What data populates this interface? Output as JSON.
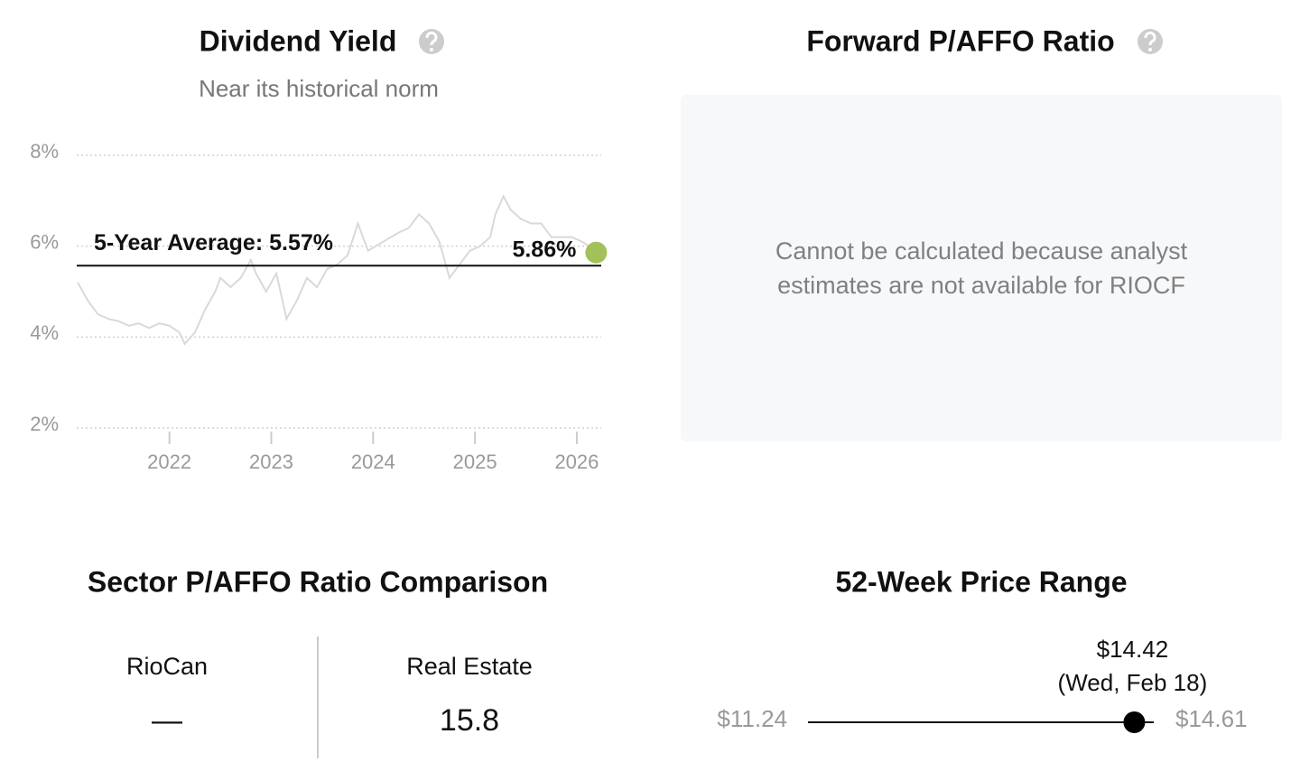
{
  "chart_data": {
    "type": "line",
    "title": "Dividend Yield",
    "subtitle": "Near its historical norm",
    "x": [
      2021.1,
      2021.2,
      2021.3,
      2021.4,
      2021.5,
      2021.6,
      2021.7,
      2021.8,
      2021.9,
      2022.0,
      2022.1,
      2022.15,
      2022.25,
      2022.35,
      2022.45,
      2022.5,
      2022.6,
      2022.7,
      2022.8,
      2022.85,
      2022.95,
      2023.05,
      2023.1,
      2023.15,
      2023.25,
      2023.35,
      2023.45,
      2023.55,
      2023.65,
      2023.75,
      2023.85,
      2023.95,
      2024.1,
      2024.25,
      2024.35,
      2024.45,
      2024.55,
      2024.65,
      2024.7,
      2024.75,
      2024.85,
      2024.95,
      2025.05,
      2025.15,
      2025.2,
      2025.28,
      2025.35,
      2025.45,
      2025.55,
      2025.65,
      2025.75,
      2025.85,
      2025.95,
      2026.05,
      2026.12
    ],
    "values": [
      5.2,
      4.8,
      4.5,
      4.4,
      4.35,
      4.25,
      4.3,
      4.2,
      4.3,
      4.25,
      4.1,
      3.85,
      4.1,
      4.6,
      5.0,
      5.3,
      5.1,
      5.3,
      5.7,
      5.4,
      5.0,
      5.4,
      4.9,
      4.4,
      4.8,
      5.3,
      5.1,
      5.5,
      5.6,
      5.8,
      6.5,
      5.9,
      6.1,
      6.3,
      6.4,
      6.7,
      6.5,
      6.1,
      5.7,
      5.3,
      5.6,
      5.9,
      6.0,
      6.2,
      6.7,
      7.1,
      6.8,
      6.6,
      6.5,
      6.5,
      6.2,
      6.2,
      6.2,
      6.1,
      6.0
    ],
    "color": "#d9d9d9",
    "xlim": [
      2021.09,
      2026.24
    ],
    "xticks": [
      2022,
      2023,
      2024,
      2025,
      2026
    ],
    "ylim": [
      2,
      8
    ],
    "yticks": [
      {
        "value": 2,
        "label": "2%"
      },
      {
        "value": 4,
        "label": "4%"
      },
      {
        "value": 6,
        "label": "6%"
      },
      {
        "value": 8,
        "label": "8%"
      }
    ],
    "grid": true,
    "average": {
      "value": 5.57,
      "label": "5-Year Average: 5.57%"
    },
    "current": {
      "x": 2026.19,
      "value": 5.86,
      "label": "5.86%",
      "color": "#a3c15a"
    }
  },
  "forward_ratio": {
    "title": "Forward P/AFFO Ratio",
    "message": "Cannot be calculated because analyst estimates are not available for RIOCF"
  },
  "sector_comparison": {
    "title": "Sector P/AFFO Ratio Comparison",
    "columns": [
      {
        "label": "RioCan",
        "value": "—"
      },
      {
        "label": "Real Estate",
        "value": 15.8
      }
    ]
  },
  "price_range": {
    "title": "52-Week Price Range",
    "low": {
      "value": 11.24,
      "label": "$11.24"
    },
    "high": {
      "value": 14.61,
      "label": "$14.61"
    },
    "current": {
      "value": 14.42,
      "label": "$14.42",
      "date": "(Wed, Feb 18)"
    }
  }
}
